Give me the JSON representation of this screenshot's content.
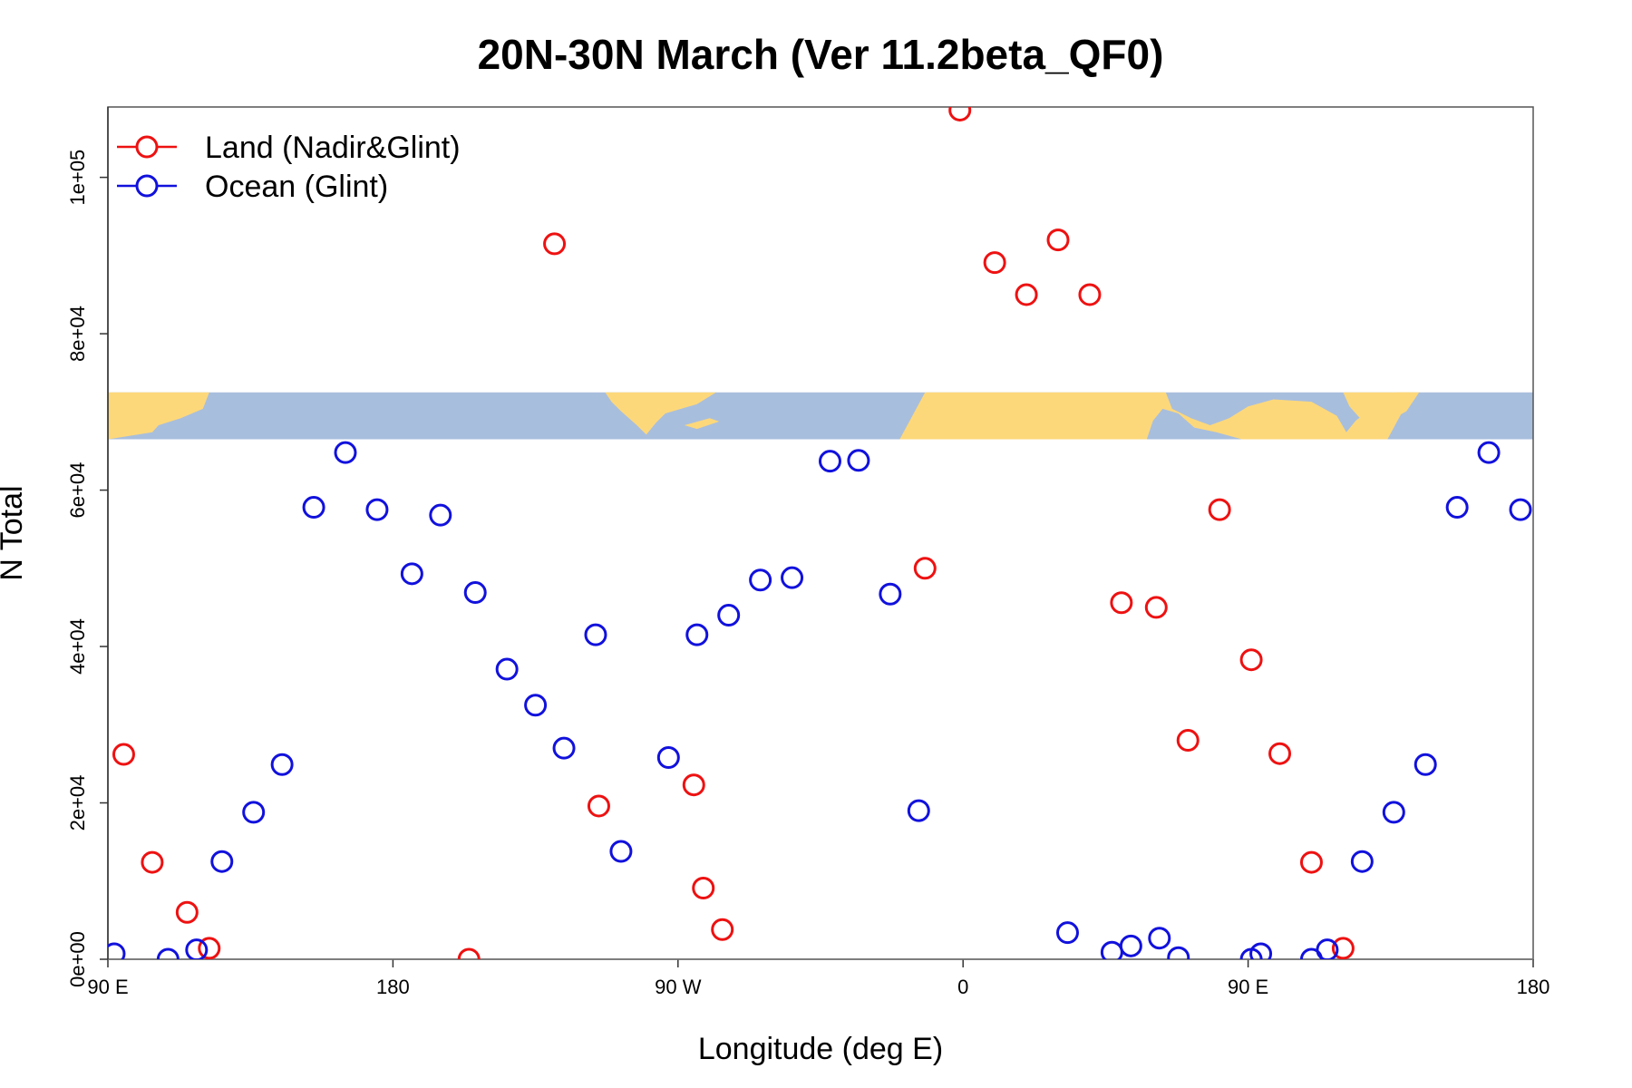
{
  "chart_data": {
    "type": "scatter",
    "title": "20N-30N March (Ver 11.2beta_QF0)",
    "xlabel": "Longitude (deg E)",
    "ylabel": "N Total",
    "xlim": [
      90,
      540
    ],
    "ylim": [
      0,
      109000
    ],
    "x_ticks": [
      {
        "value": 90,
        "label": "90 E"
      },
      {
        "value": 180,
        "label": "180"
      },
      {
        "value": 270,
        "label": "90 W"
      },
      {
        "value": 360,
        "label": "0"
      },
      {
        "value": 450,
        "label": "90 E"
      },
      {
        "value": 540,
        "label": "180"
      }
    ],
    "y_ticks": [
      {
        "value": 0,
        "label": "0e+00"
      },
      {
        "value": 20000,
        "label": "2e+04"
      },
      {
        "value": 40000,
        "label": "4e+04"
      },
      {
        "value": 60000,
        "label": "6e+04"
      },
      {
        "value": 80000,
        "label": "8e+04"
      },
      {
        "value": 100000,
        "label": "1e+05"
      }
    ],
    "legend_position": "top-left",
    "map_band": {
      "description": "world map strip 20N-30N",
      "y_range": [
        66500,
        72500
      ],
      "land_color": "#fdd87a",
      "ocean_color": "#a8bedd"
    },
    "series": [
      {
        "name": "Land (Nadir&Glint)",
        "color": "#ee1111",
        "x": [
          95,
          104,
          115,
          122,
          204,
          231,
          245,
          275,
          278,
          284,
          348,
          359,
          370,
          380,
          390,
          400,
          410,
          421,
          431,
          441,
          451,
          460,
          470,
          480
        ],
        "y": [
          26200,
          12400,
          6000,
          1400,
          0,
          91500,
          19600,
          22300,
          9100,
          3800,
          50000,
          108600,
          89100,
          85000,
          92000,
          85000,
          45600,
          45000,
          28000,
          57500,
          38300,
          26300,
          12400,
          1400
        ]
      },
      {
        "name": "Ocean (Glint)",
        "color": "#1111dd",
        "x": [
          92,
          109,
          118,
          126,
          136,
          145,
          155,
          165,
          175,
          186,
          195,
          206,
          216,
          225,
          234,
          244,
          252,
          267,
          276,
          286,
          296,
          306,
          318,
          327,
          337,
          346,
          393,
          407,
          413,
          422,
          428,
          451,
          454,
          470,
          475,
          486,
          496,
          506,
          516,
          526,
          536
        ],
        "y": [
          700,
          0,
          1200,
          12500,
          18800,
          24900,
          57800,
          64800,
          57500,
          49300,
          56800,
          46900,
          37100,
          32500,
          27000,
          41500,
          13800,
          25800,
          41500,
          44000,
          48500,
          48800,
          63700,
          63800,
          46700,
          19000,
          3400,
          900,
          1700,
          2700,
          200,
          0,
          700,
          0,
          1200,
          12500,
          18800,
          24900,
          57800,
          64800,
          57500
        ]
      }
    ]
  }
}
